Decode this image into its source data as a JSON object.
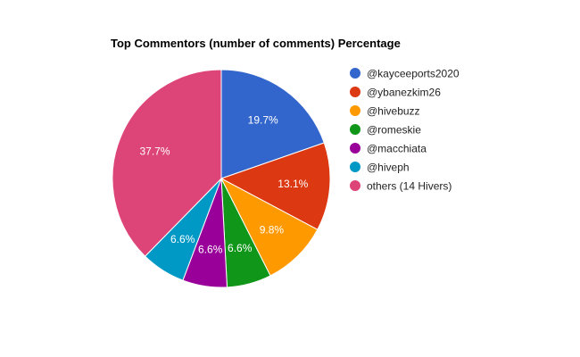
{
  "chart_data": {
    "type": "pie",
    "title": "Top Commentors (number of comments) Percentage",
    "legend_position": "right",
    "slices": [
      {
        "label": "@kayceeports2020",
        "value": 19.7,
        "display": "19.7%",
        "color": "#3366cc"
      },
      {
        "label": "@ybanezkim26",
        "value": 13.1,
        "display": "13.1%",
        "color": "#dc3912"
      },
      {
        "label": "@hivebuzz",
        "value": 9.8,
        "display": "9.8%",
        "color": "#ff9900"
      },
      {
        "label": "@romeskie",
        "value": 6.6,
        "display": "6.6%",
        "color": "#109618"
      },
      {
        "label": "@macchiata",
        "value": 6.6,
        "display": "6.6%",
        "color": "#990099"
      },
      {
        "label": "@hiveph",
        "value": 6.6,
        "display": "6.6%",
        "color": "#0099c6"
      },
      {
        "label": "others (14 Hivers)",
        "value": 37.7,
        "display": "37.7%",
        "color": "#dd4477"
      }
    ]
  }
}
